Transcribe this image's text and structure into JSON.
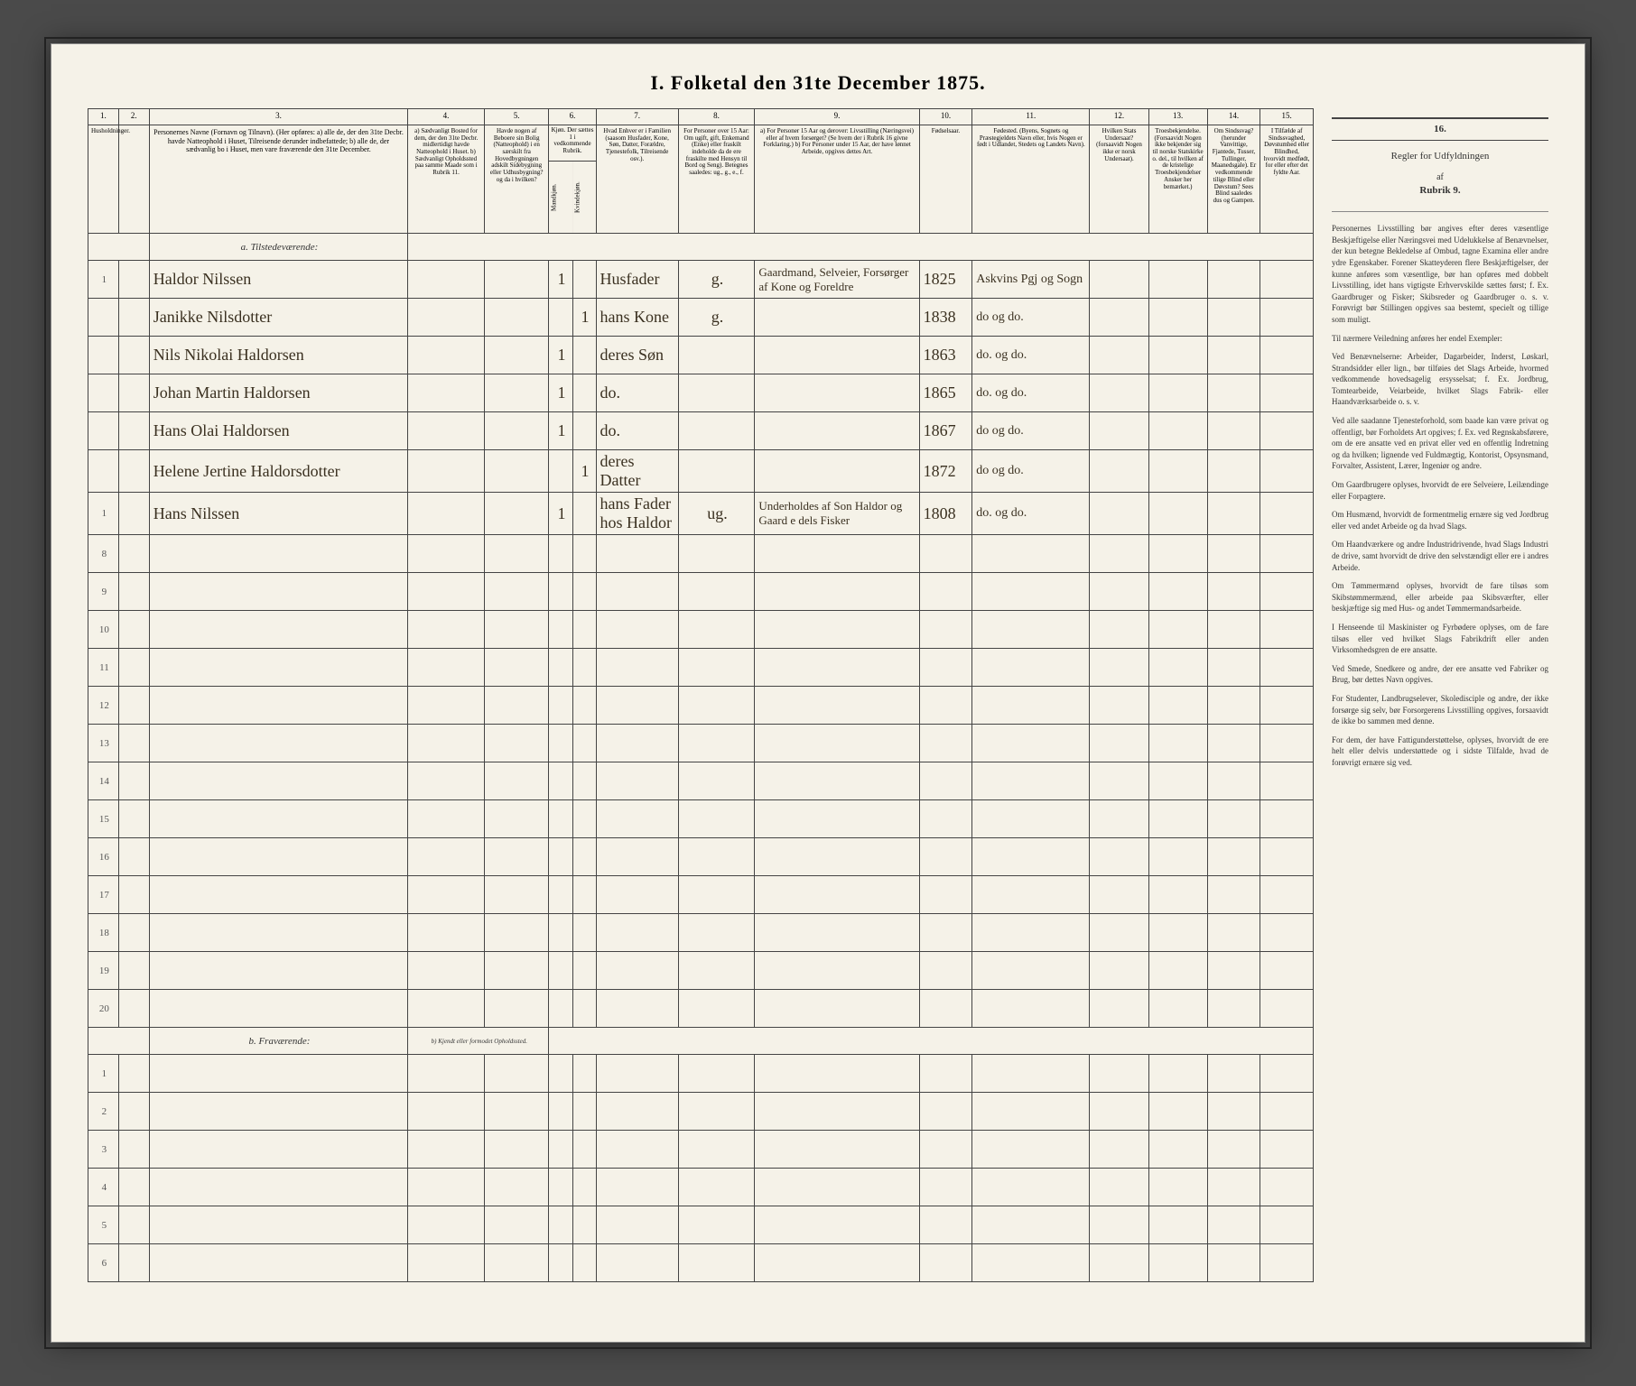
{
  "title": "I. Folketal den 31te December 1875.",
  "columns": {
    "nums": [
      "1.",
      "2.",
      "3.",
      "4.",
      "5.",
      "6.",
      "7.",
      "8.",
      "9.",
      "10.",
      "11.",
      "12.",
      "13.",
      "14.",
      "15.",
      "16."
    ],
    "h1": "Husholdninger.",
    "h2": "",
    "h3": "Personernes Navne (Fornavn og Tilnavn).\n(Her opføres:\na) alle de, der den 31te Decbr. havde Natteophold i Huset, Tilreisende derunder indbefattede;\nb) alle de, der sædvanlig bo i Huset, men vare fraværende den 31te December.",
    "h4": "a) Sædvanligt Bosted for dem, der den 31te Decbr. midlertidigt havde Natteophold i Huset. b) Sædvanligt Opholdssted paa samme Maade som i Rubrik 11.",
    "h5": "Havde nogen af Beboere sin Bolig (Natteophold) i en særskilt fra Hovedbygningen adskilt Sidebygning eller Udhusbygning? og da i hvilken?",
    "h6": "Kjøn. Der sættes 1 i vedkommende Rubrik.",
    "h6a": "Mandkjøn.",
    "h6b": "Kvindekjøn.",
    "h7": "Hvad Enhver er i Familien (saasom Husfader, Kone, Søn, Datter, Forældre, Tjenestefolk, Tilreisende osv.).",
    "h8": "For Personer over 15 Aar: Om ugift, gift, Enkemand (Enke) eller fraskilt indeholde da de ere fraskilte med Hensyn til Bord og Seng). Betegnes saaledes: ug., g., e., f.",
    "h9": "a) For Personer 15 Aar og derover: Livsstilling (Næringsvei) eller af hvem forsørget? (Se hvem der i Rubrik 16 givne Forklaring.)\nb) For Personer under 15 Aar, der have lønnet Arbeide, opgives dettes Art.",
    "h10": "Fødselsaar.",
    "h11": "Fødested.\n(Byens, Sognets og Præstegjeldets Navn eller, hvis Nogen er født i Udlandet, Stedets og Landets Navn).",
    "h12": "Hvilken Stats Undersaat? (forsaavidt Nogen ikke er norsk Undersaat).",
    "h13": "Troesbekjendelse. (Forsaavidt Nogen ikke bekjender sig til norske Statskirke o. del., til hvilken af de kristelige Troesbekjendelser Ansker her bemærket.)",
    "h14": "Om Sindssvag? (herunder Vanvittige, Fjantede, Tusser, Tullinger, Maanedsgale). Er vedkommende tilige Blind eller Døvstum? Sees Blind saaledes dus og Gampen.",
    "h15": "I Tilfælde af Sindssvaghed, Døvstumhed eller Blindhed, hvorvidt medfødt, for eller efter det fyldte Aar."
  },
  "section_a": "a. Tilstedeværende:",
  "section_b": "b. Fraværende:",
  "section_b_note": "b) Kjendt eller formodet Opholdssted.",
  "rows": [
    {
      "n1": "1",
      "n2": "",
      "name": "Haldor Nilssen",
      "c4": "",
      "c5": "",
      "male": "1",
      "female": "",
      "rel": "Husfader",
      "civ": "g.",
      "occ": "Gaardmand, Selveier, Forsørger af Kone og Foreldre",
      "year": "1825",
      "place": "Askvins Pgj og Sogn",
      "c12": "",
      "c13": "",
      "c14": "",
      "c15": ""
    },
    {
      "n1": "",
      "n2": "",
      "name": "Janikke Nilsdotter",
      "c4": "",
      "c5": "",
      "male": "",
      "female": "1",
      "rel": "hans Kone",
      "civ": "g.",
      "occ": "",
      "year": "1838",
      "place": "do og do.",
      "c12": "",
      "c13": "",
      "c14": "",
      "c15": ""
    },
    {
      "n1": "",
      "n2": "",
      "name": "Nils Nikolai Haldorsen",
      "c4": "",
      "c5": "",
      "male": "1",
      "female": "",
      "rel": "deres Søn",
      "civ": "",
      "occ": "",
      "year": "1863",
      "place": "do. og do.",
      "c12": "",
      "c13": "",
      "c14": "",
      "c15": ""
    },
    {
      "n1": "",
      "n2": "",
      "name": "Johan Martin Haldorsen",
      "c4": "",
      "c5": "",
      "male": "1",
      "female": "",
      "rel": "do.",
      "civ": "",
      "occ": "",
      "year": "1865",
      "place": "do. og do.",
      "c12": "",
      "c13": "",
      "c14": "",
      "c15": ""
    },
    {
      "n1": "",
      "n2": "",
      "name": "Hans Olai Haldorsen",
      "c4": "",
      "c5": "",
      "male": "1",
      "female": "",
      "rel": "do.",
      "civ": "",
      "occ": "",
      "year": "1867",
      "place": "do og do.",
      "c12": "",
      "c13": "",
      "c14": "",
      "c15": ""
    },
    {
      "n1": "",
      "n2": "",
      "name": "Helene Jertine Haldorsdotter",
      "c4": "",
      "c5": "",
      "male": "",
      "female": "1",
      "rel": "deres Datter",
      "civ": "",
      "occ": "",
      "year": "1872",
      "place": "do og do.",
      "c12": "",
      "c13": "",
      "c14": "",
      "c15": ""
    },
    {
      "n1": "1",
      "n2": "",
      "name": "Hans Nilssen",
      "c4": "",
      "c5": "",
      "male": "1",
      "female": "",
      "rel": "hans Fader hos Haldor",
      "civ": "ug.",
      "occ": "Underholdes af Son Haldor og Gaard e dels Fisker",
      "year": "1808",
      "place": "do. og do.",
      "c12": "",
      "c13": "",
      "c14": "",
      "c15": ""
    }
  ],
  "empty_rows_a": [
    8,
    9,
    10,
    11,
    12,
    13,
    14,
    15,
    16,
    17,
    18,
    19,
    20
  ],
  "empty_rows_b": [
    1,
    2,
    3,
    4,
    5,
    6
  ],
  "rules": {
    "title": "Regler for Udfyldningen",
    "af": "af",
    "sub": "Rubrik 9.",
    "paras": [
      "Personernes Livsstilling bør angives efter deres væsentlige Beskjæftigelse eller Næringsvei med Udelukkelse af Benævnelser, der kun betegne Bekledelse af Ombud, tagne Examina eller andre ydre Egenskaber. Forener Skatteyderen flere Beskjæftigelser, der kunne anføres som væsentlige, bør han opføres med dobbelt Livsstilling, idet hans vigtigste Erhvervskilde sættes først; f. Ex. Gaardbruger og Fisker; Skibsreder og Gaardbruger o. s. v. Forøvrigt bør Stillingen opgives saa bestemt, specielt og tillige som muligt.",
      "Til nærmere Veiledning anføres her endel Exempler:",
      "Ved Benævnelserne: Arbeider, Dagarbeider, Inderst, Løskarl, Strandsidder eller lign., bør tilføies det Slags Arbeide, hvormed vedkommende hovedsagelig ersysselsat; f. Ex. Jordbrug, Tomtearbeide, Veiarbeide, hvilket Slags Fabrik- eller Haandværksarbeide o. s. v.",
      "Ved alle saadanne Tjenesteforhold, som baade kan være privat og offentligt, bør Forholdets Art opgives; f. Ex. ved Regnskabsførere, om de ere ansatte ved en privat eller ved en offentlig Indretning og da hvilken; lignende ved Fuldmægtig, Kontorist, Opsynsmand, Forvalter, Assistent, Lærer, Ingeniør og andre.",
      "Om Gaardbrugere oplyses, hvorvidt de ere Selveiere, Leilændinge eller Forpagtere.",
      "Om Husmænd, hvorvidt de formentmelig ernære sig ved Jordbrug eller ved andet Arbeide og da hvad Slags.",
      "Om Haandværkere og andre Industridrivende, hvad Slags Industri de drive, samt hvorvidt de drive den selvstændigt eller ere i andres Arbeide.",
      "Om Tømmermænd oplyses, hvorvidt de fare tilsøs som Skibstømmermænd, eller arbeide paa Skibsværfter, eller beskjæftige sig med Hus- og andet Tømmermandsarbeide.",
      "I Henseende til Maskinister og Fyrbødere oplyses, om de fare tilsøs eller ved hvilket Slags Fabrikdrift eller anden Virksomhedsgren de ere ansatte.",
      "Ved Smede, Snedkere og andre, der ere ansatte ved Fabriker og Brug, bør dettes Navn opgives.",
      "For Studenter, Landbrugselever, Skoledisciple og andre, der ikke forsørge sig selv, bør Forsorgerens Livsstilling opgives, forsaavidt de ikke bo sammen med denne.",
      "For dem, der have Fattigunderstøttelse, oplyses, hvorvidt de ere helt eller delvis understøttede og i sidste Tilfalde, hvad de forøvrigt ernære sig ved."
    ]
  },
  "colors": {
    "paper": "#f5f2e8",
    "ink": "#3a3020",
    "border": "#444444",
    "background": "#4a4a4a"
  }
}
